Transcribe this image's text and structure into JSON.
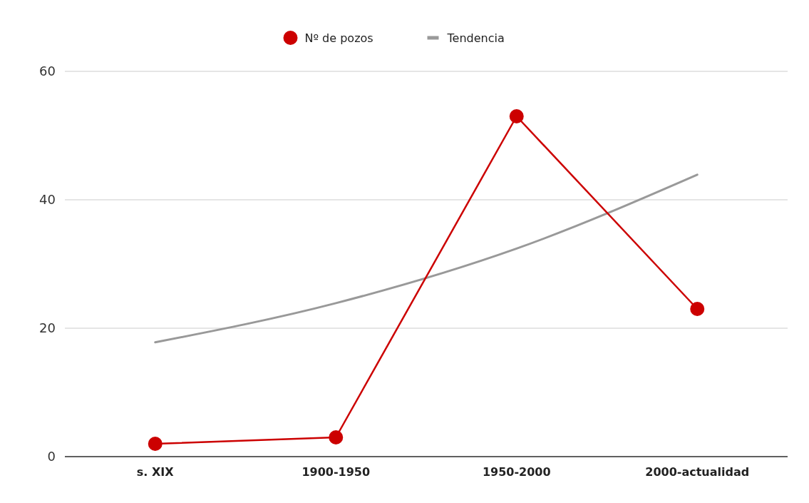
{
  "chart_data": {
    "type": "line",
    "categories": [
      "s. XIX",
      "1900-1950",
      "1950-2000",
      "2000-actualidad"
    ],
    "series": [
      {
        "name": "Nº de pozos",
        "color": "#cc0000",
        "values": [
          2,
          3,
          53,
          23
        ],
        "marker": "circle"
      },
      {
        "name": "Tendencia",
        "color": "#999999",
        "type": "line",
        "marker": "none",
        "values": [
          17.8,
          23.9,
          32.4,
          43.9
        ]
      }
    ],
    "ylim": [
      0,
      60
    ],
    "yticks": [
      0,
      20,
      40,
      60
    ],
    "grid": "y",
    "legend": "top"
  }
}
